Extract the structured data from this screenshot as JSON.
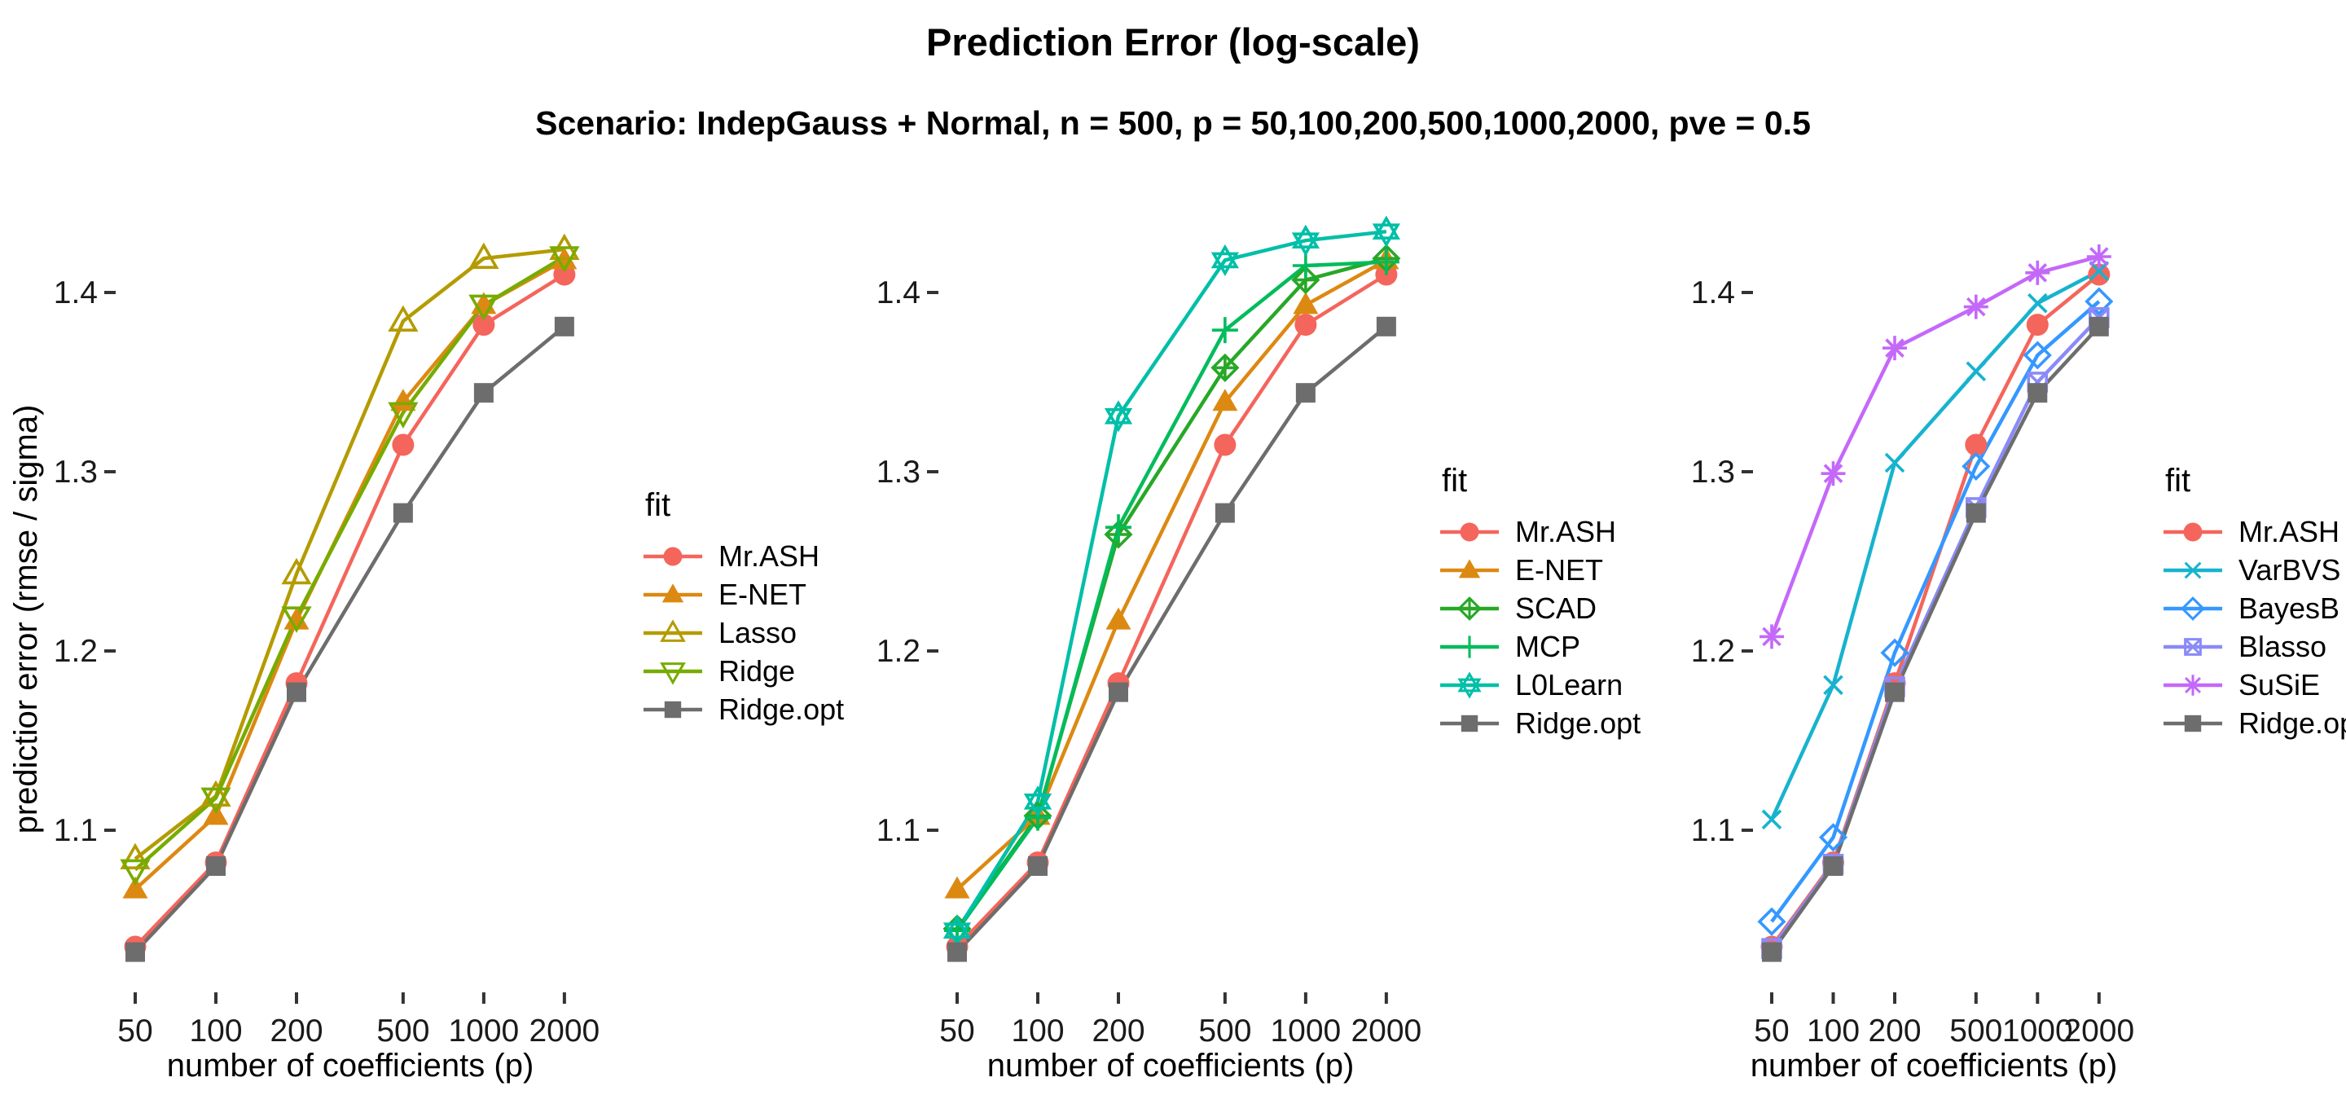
{
  "title": "Prediction Error (log-scale)",
  "subtitle": "Scenario: IndepGauss + Normal, n = 500, p = 50,100,200,500,1000,2000, pve = 0.5",
  "axes": {
    "x_label": "number of coefficients (p)",
    "y_label": "predictior error (rmse / sigma)"
  },
  "chart_data": {
    "type": "line",
    "x_scale": "log",
    "x": [
      50,
      100,
      200,
      500,
      1000,
      2000
    ],
    "x_tick_labels": [
      "50",
      "100",
      "200",
      "500",
      "1000",
      "2000"
    ],
    "y_ticks": [
      1.1,
      1.2,
      1.3,
      1.4
    ],
    "y_tick_labels": [
      "1.1",
      "1.2",
      "1.3",
      "1.4"
    ],
    "ylim": [
      1.005,
      1.45
    ],
    "grid": false,
    "legend_position": "right",
    "panels": [
      {
        "legend_title": "fit",
        "series": [
          {
            "name": "Mr.ASH",
            "color": "#F4655C",
            "shape": "circle",
            "values": [
              1.035,
              1.082,
              1.182,
              1.315,
              1.382,
              1.41
            ]
          },
          {
            "name": "E-NET",
            "color": "#DC8912",
            "shape": "triangle",
            "values": [
              1.067,
              1.108,
              1.217,
              1.339,
              1.393,
              1.418
            ]
          },
          {
            "name": "Lasso",
            "color": "#B49B00",
            "shape": "triangle-open",
            "values": [
              1.084,
              1.119,
              1.243,
              1.384,
              1.419,
              1.424
            ]
          },
          {
            "name": "Ridge",
            "color": "#76AC00",
            "shape": "triangle-down-open",
            "values": [
              1.078,
              1.118,
              1.219,
              1.333,
              1.393,
              1.42
            ]
          },
          {
            "name": "Ridge.opt",
            "color": "#6D6D6D",
            "shape": "square",
            "values": [
              1.032,
              1.08,
              1.177,
              1.277,
              1.344,
              1.381
            ]
          }
        ]
      },
      {
        "legend_title": "fit",
        "series": [
          {
            "name": "Mr.ASH",
            "color": "#F4655C",
            "shape": "circle",
            "values": [
              1.035,
              1.082,
              1.182,
              1.315,
              1.382,
              1.41
            ]
          },
          {
            "name": "E-NET",
            "color": "#DC8912",
            "shape": "triangle",
            "values": [
              1.067,
              1.108,
              1.217,
              1.339,
              1.393,
              1.418
            ]
          },
          {
            "name": "SCAD",
            "color": "#27A827",
            "shape": "diamond-plus",
            "values": [
              1.045,
              1.108,
              1.265,
              1.358,
              1.407,
              1.419
            ]
          },
          {
            "name": "MCP",
            "color": "#00BC5C",
            "shape": "plus",
            "values": [
              1.044,
              1.107,
              1.269,
              1.379,
              1.415,
              1.417
            ]
          },
          {
            "name": "L0Learn",
            "color": "#00BFA8",
            "shape": "star6",
            "values": [
              1.044,
              1.116,
              1.331,
              1.418,
              1.429,
              1.434
            ]
          },
          {
            "name": "Ridge.opt",
            "color": "#6D6D6D",
            "shape": "square",
            "values": [
              1.032,
              1.08,
              1.177,
              1.277,
              1.344,
              1.381
            ]
          }
        ]
      },
      {
        "legend_title": "fit",
        "series": [
          {
            "name": "Mr.ASH",
            "color": "#F4655C",
            "shape": "circle",
            "values": [
              1.035,
              1.082,
              1.182,
              1.315,
              1.382,
              1.41
            ]
          },
          {
            "name": "VarBVS",
            "color": "#17B3CE",
            "shape": "x",
            "values": [
              1.106,
              1.181,
              1.305,
              1.356,
              1.394,
              1.412
            ]
          },
          {
            "name": "BayesB",
            "color": "#3498FF",
            "shape": "diamond-open",
            "values": [
              1.049,
              1.096,
              1.199,
              1.303,
              1.365,
              1.395
            ]
          },
          {
            "name": "Blasso",
            "color": "#8A8AF8",
            "shape": "square-x",
            "values": [
              1.034,
              1.081,
              1.18,
              1.28,
              1.35,
              1.386
            ]
          },
          {
            "name": "SuSiE",
            "color": "#C468FA",
            "shape": "asterisk",
            "values": [
              1.208,
              1.299,
              1.369,
              1.392,
              1.411,
              1.42
            ]
          },
          {
            "name": "Ridge.opt",
            "color": "#6D6D6D",
            "shape": "square",
            "values": [
              1.032,
              1.08,
              1.177,
              1.277,
              1.344,
              1.381
            ]
          }
        ]
      }
    ]
  }
}
